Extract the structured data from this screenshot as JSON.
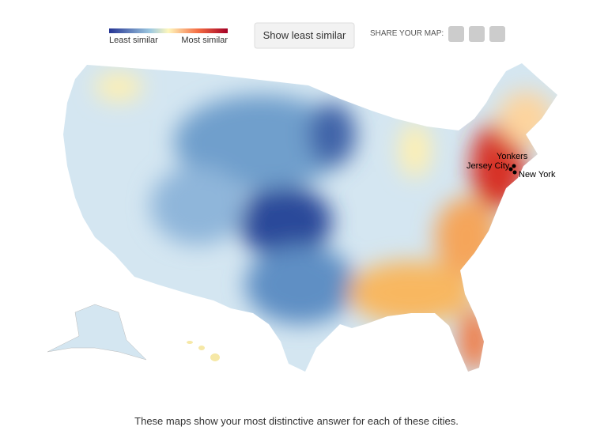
{
  "legend": {
    "low": "Least similar",
    "high": "Most similar"
  },
  "button": "Show least similar",
  "share": "SHARE YOUR MAP:",
  "cities": [
    "Yonkers",
    "Jersey City",
    "New York"
  ],
  "caption": "These maps show your most distinctive answer for each of these cities."
}
